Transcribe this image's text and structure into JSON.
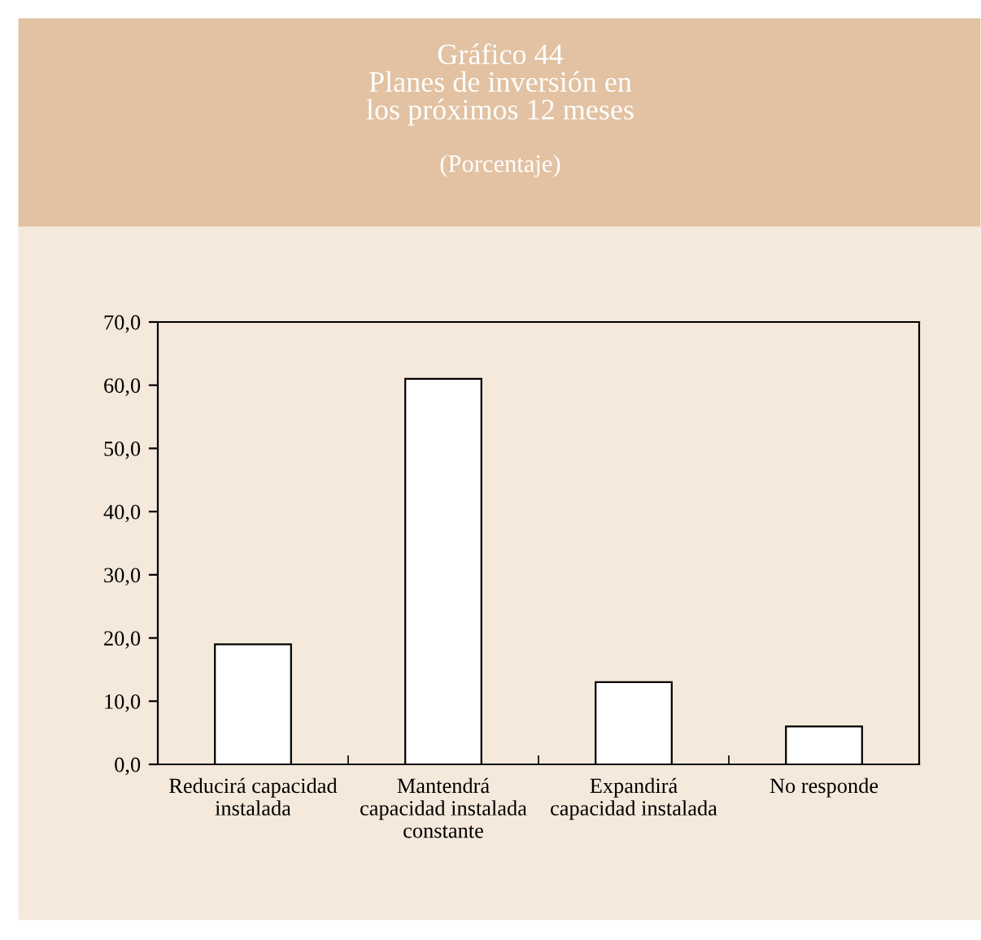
{
  "chart_data": {
    "type": "bar",
    "title": "Gráfico 44\nPlanes de inversión en\nlos próximos 12 meses",
    "subtitle": "(Porcentaje)",
    "categories": [
      "Reducirá capacidad\ninstalada",
      "Mantendrá\ncapacidad instalada\nconstante",
      "Expandirá\ncapacidad instalada",
      "No responde"
    ],
    "values": [
      19.0,
      61.0,
      13.0,
      6.0
    ],
    "color": "#ffffff",
    "ylim": [
      0,
      70
    ],
    "yticks": [
      {
        "value": 0,
        "label": "0,0"
      },
      {
        "value": 10,
        "label": "10,0"
      },
      {
        "value": 20,
        "label": "20,0"
      },
      {
        "value": 30,
        "label": "30,0"
      },
      {
        "value": 40,
        "label": "40,0"
      },
      {
        "value": 50,
        "label": "50,0"
      },
      {
        "value": 60,
        "label": "60,0"
      },
      {
        "value": 70,
        "label": "70,0"
      }
    ],
    "grid": false,
    "legend": false
  }
}
